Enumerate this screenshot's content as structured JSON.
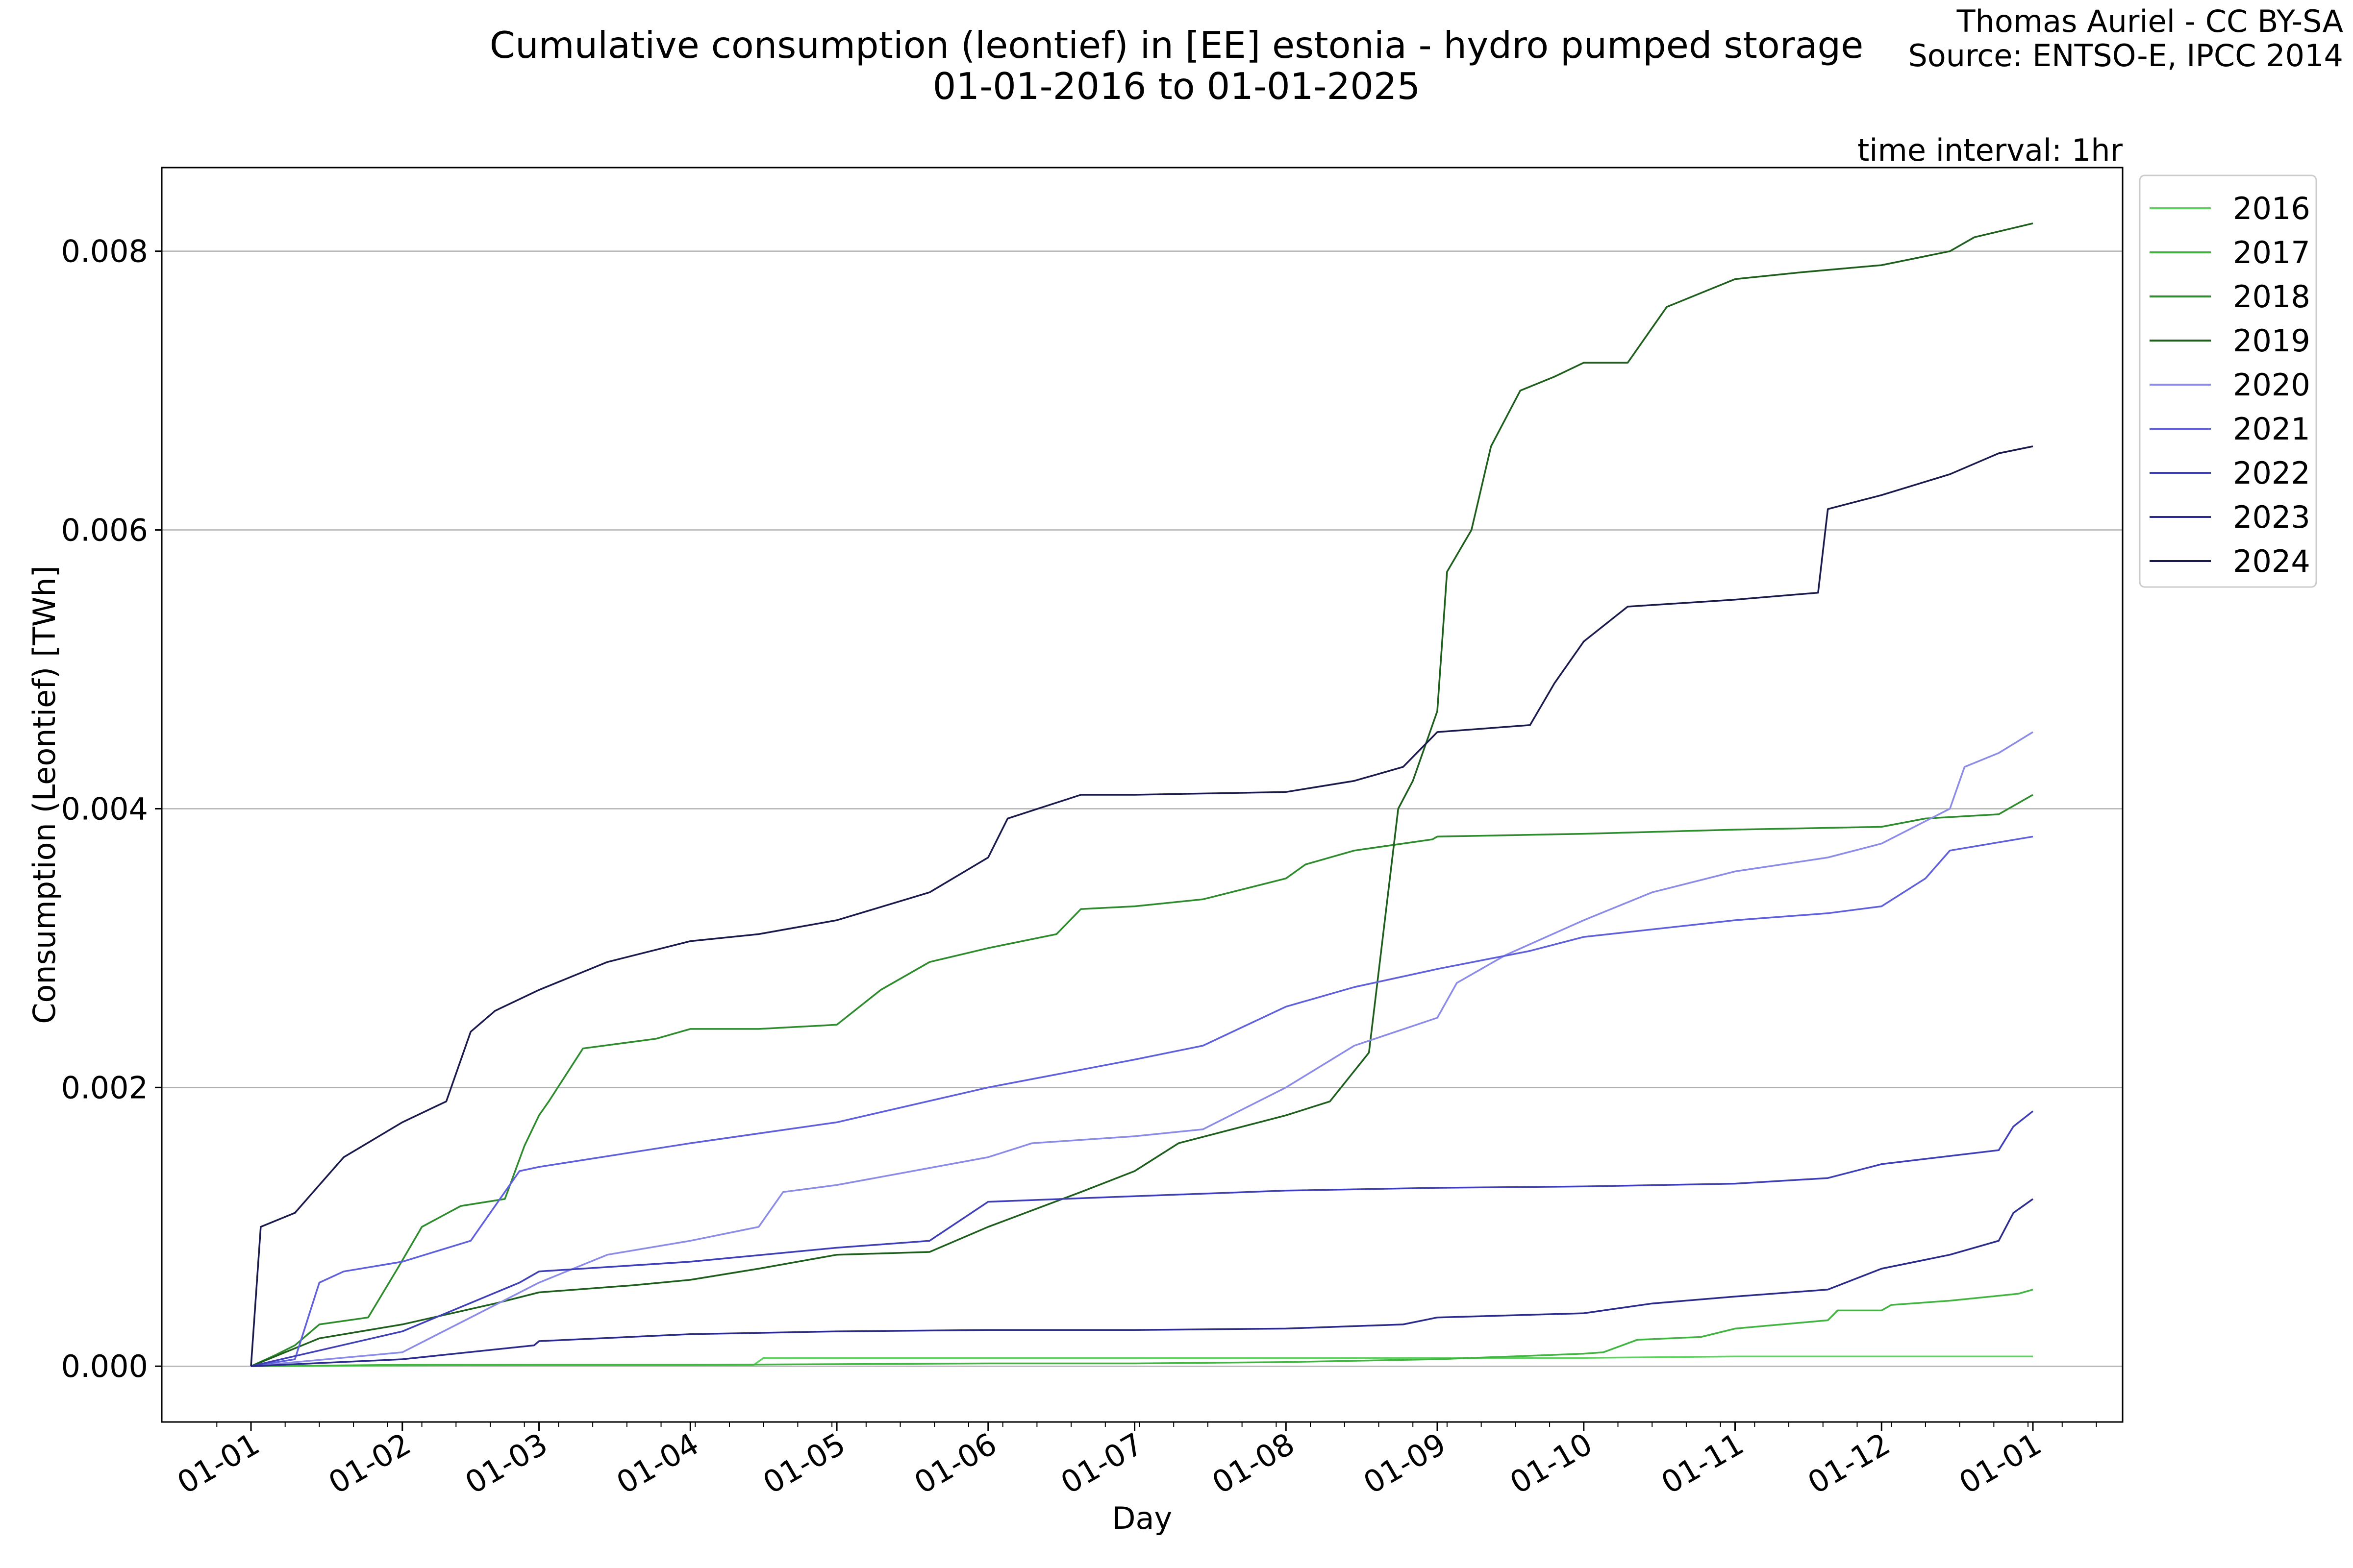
{
  "chart_data": {
    "type": "line",
    "title": "Cumulative consumption (leontief) in [EE] estonia - hydro pumped storage",
    "subtitle": "01-01-2016 to 01-01-2025",
    "credit": "Thomas Auriel - CC BY-SA",
    "source": "Source: ENTSO-E, IPCC 2014",
    "annotation": "time interval: 1hr",
    "xlabel": "Day",
    "ylabel": "Consumption (Leontief) [TWh]",
    "ylim": [
      -0.0004,
      0.0086
    ],
    "y_ticks": [
      0.0,
      0.002,
      0.004,
      0.006,
      0.008
    ],
    "y_tick_labels": [
      "0.000",
      "0.002",
      "0.004",
      "0.006",
      "0.008"
    ],
    "x_ticks": [
      "01-01",
      "01-02",
      "01-03",
      "01-04",
      "01-05",
      "01-06",
      "01-07",
      "01-08",
      "01-09",
      "01-10",
      "01-11",
      "01-12",
      "01-01"
    ],
    "grid": "horizontal",
    "legend_position": "outside-top-right",
    "series": [
      {
        "name": "2016",
        "color": "#5fd35f",
        "points": [
          [
            "01-01",
            0
          ],
          [
            "01-03",
            1e-05
          ],
          [
            "01-04",
            1e-05
          ],
          [
            "01-04-14",
            1e-05
          ],
          [
            "01-04-16",
            6e-05
          ],
          [
            "01-05",
            6e-05
          ],
          [
            "01-08",
            6e-05
          ],
          [
            "01-10",
            6e-05
          ],
          [
            "01-11",
            7e-05
          ],
          [
            "01-12",
            7e-05
          ],
          [
            "01-01",
            7e-05
          ]
        ]
      },
      {
        "name": "2017",
        "color": "#41b441",
        "points": [
          [
            "01-01",
            0
          ],
          [
            "01-02",
            1e-05
          ],
          [
            "01-04",
            1e-05
          ],
          [
            "01-06",
            2e-05
          ],
          [
            "01-07",
            2e-05
          ],
          [
            "01-08",
            3e-05
          ],
          [
            "01-09",
            5e-05
          ],
          [
            "01-10",
            9e-05
          ],
          [
            "01-10-05",
            0.0001
          ],
          [
            "01-10-12",
            0.00019
          ],
          [
            "01-10-25",
            0.00021
          ],
          [
            "01-11",
            0.00027
          ],
          [
            "01-11-20",
            0.00033
          ],
          [
            "01-11-22",
            0.0004
          ],
          [
            "01-12",
            0.0004
          ],
          [
            "01-12-03",
            0.00044
          ],
          [
            "01-12-15",
            0.00047
          ],
          [
            "01-12-29",
            0.00052
          ],
          [
            "01-01",
            0.00055
          ]
        ]
      },
      {
        "name": "2018",
        "color": "#2e8b2e",
        "points": [
          [
            "01-01",
            0
          ],
          [
            "01-01-06",
            8e-05
          ],
          [
            "01-01-10",
            0.00015
          ],
          [
            "01-01-15",
            0.0003
          ],
          [
            "01-01-25",
            0.00035
          ],
          [
            "01-01-31",
            0.0007
          ],
          [
            "01-02-05",
            0.001
          ],
          [
            "01-02-13",
            0.00115
          ],
          [
            "01-02-22",
            0.0012
          ],
          [
            "01-02-26",
            0.00158
          ],
          [
            "01-03",
            0.0018
          ],
          [
            "01-03-03",
            0.0019
          ],
          [
            "01-03-10",
            0.00228
          ],
          [
            "01-03-25",
            0.00235
          ],
          [
            "01-04",
            0.00242
          ],
          [
            "01-04-15",
            0.00242
          ],
          [
            "01-05",
            0.00245
          ],
          [
            "01-05-10",
            0.0027
          ],
          [
            "01-05-20",
            0.0029
          ],
          [
            "01-06",
            0.003
          ],
          [
            "01-06-15",
            0.0031
          ],
          [
            "01-06-20",
            0.00328
          ],
          [
            "01-07",
            0.0033
          ],
          [
            "01-07-15",
            0.00335
          ],
          [
            "01-08",
            0.0035
          ],
          [
            "01-08-05",
            0.0036
          ],
          [
            "01-08-15",
            0.0037
          ],
          [
            "01-08-31",
            0.00378
          ],
          [
            "01-09",
            0.0038
          ],
          [
            "01-10",
            0.00382
          ],
          [
            "01-11",
            0.00385
          ],
          [
            "01-12",
            0.00387
          ],
          [
            "01-12-10",
            0.00393
          ],
          [
            "01-12-25",
            0.00396
          ],
          [
            "01-01",
            0.0041
          ]
        ]
      },
      {
        "name": "2019",
        "color": "#1e5f1e",
        "points": [
          [
            "01-01",
            0
          ],
          [
            "01-01-15",
            0.0002
          ],
          [
            "01-02",
            0.0003
          ],
          [
            "01-02-20",
            0.00045
          ],
          [
            "01-03",
            0.00053
          ],
          [
            "01-03-20",
            0.00058
          ],
          [
            "01-04",
            0.00062
          ],
          [
            "01-04-15",
            0.0007
          ],
          [
            "01-05",
            0.0008
          ],
          [
            "01-05-20",
            0.00082
          ],
          [
            "01-06",
            0.001
          ],
          [
            "01-06-20",
            0.00125
          ],
          [
            "01-07",
            0.0014
          ],
          [
            "01-07-10",
            0.0016
          ],
          [
            "01-08",
            0.0018
          ],
          [
            "01-08-10",
            0.0019
          ],
          [
            "01-08-18",
            0.00225
          ],
          [
            "01-08-24",
            0.004
          ],
          [
            "01-08-27",
            0.0042
          ],
          [
            "01-09",
            0.0047
          ],
          [
            "01-09-03",
            0.0057
          ],
          [
            "01-09-08",
            0.006
          ],
          [
            "01-09-12",
            0.0066
          ],
          [
            "01-09-18",
            0.007
          ],
          [
            "01-09-25",
            0.0071
          ],
          [
            "01-10",
            0.0072
          ],
          [
            "01-10-10",
            0.0072
          ],
          [
            "01-10-18",
            0.0076
          ],
          [
            "01-10-25",
            0.0077
          ],
          [
            "01-11",
            0.0078
          ],
          [
            "01-11-15",
            0.00785
          ],
          [
            "01-12",
            0.0079
          ],
          [
            "01-12-15",
            0.008
          ],
          [
            "01-12-20",
            0.0081
          ],
          [
            "01-01",
            0.0082
          ]
        ]
      },
      {
        "name": "2020",
        "color": "#8c8ce8",
        "points": [
          [
            "01-01",
            0
          ],
          [
            "01-02",
            0.0001
          ],
          [
            "01-02-15",
            0.00035
          ],
          [
            "01-03",
            0.0006
          ],
          [
            "01-03-15",
            0.0008
          ],
          [
            "01-04",
            0.0009
          ],
          [
            "01-04-15",
            0.001
          ],
          [
            "01-04-20",
            0.00125
          ],
          [
            "01-05",
            0.0013
          ],
          [
            "01-06",
            0.0015
          ],
          [
            "01-06-10",
            0.0016
          ],
          [
            "01-07",
            0.00165
          ],
          [
            "01-07-15",
            0.0017
          ],
          [
            "01-08",
            0.002
          ],
          [
            "01-08-15",
            0.0023
          ],
          [
            "01-09",
            0.0025
          ],
          [
            "01-09-05",
            0.00275
          ],
          [
            "01-09-15",
            0.00295
          ],
          [
            "01-10",
            0.0032
          ],
          [
            "01-10-15",
            0.0034
          ],
          [
            "01-11",
            0.00355
          ],
          [
            "01-11-20",
            0.00365
          ],
          [
            "01-12",
            0.00375
          ],
          [
            "01-12-15",
            0.004
          ],
          [
            "01-12-18",
            0.0043
          ],
          [
            "01-12-25",
            0.0044
          ],
          [
            "01-01",
            0.00455
          ]
        ]
      },
      {
        "name": "2021",
        "color": "#6060dc",
        "points": [
          [
            "01-01",
            0
          ],
          [
            "01-01-10",
            5e-05
          ],
          [
            "01-01-15",
            0.0006
          ],
          [
            "01-01-20",
            0.00068
          ],
          [
            "01-02",
            0.00075
          ],
          [
            "01-02-15",
            0.0009
          ],
          [
            "01-02-25",
            0.0014
          ],
          [
            "01-03",
            0.00143
          ],
          [
            "01-04",
            0.0016
          ],
          [
            "01-05",
            0.00175
          ],
          [
            "01-06",
            0.002
          ],
          [
            "01-07",
            0.0022
          ],
          [
            "01-07-15",
            0.0023
          ],
          [
            "01-08",
            0.00258
          ],
          [
            "01-08-15",
            0.00272
          ],
          [
            "01-09",
            0.00285
          ],
          [
            "01-09-20",
            0.00298
          ],
          [
            "01-10",
            0.00308
          ],
          [
            "01-11",
            0.0032
          ],
          [
            "01-11-20",
            0.00325
          ],
          [
            "01-12",
            0.0033
          ],
          [
            "01-12-10",
            0.0035
          ],
          [
            "01-12-15",
            0.0037
          ],
          [
            "01-01",
            0.0038
          ]
        ]
      },
      {
        "name": "2022",
        "color": "#3f3fb8",
        "points": [
          [
            "01-01",
            0
          ],
          [
            "01-02",
            0.00025
          ],
          [
            "01-02-25",
            0.0006
          ],
          [
            "01-03",
            0.00068
          ],
          [
            "01-04",
            0.00075
          ],
          [
            "01-05",
            0.00085
          ],
          [
            "01-05-20",
            0.0009
          ],
          [
            "01-06",
            0.00118
          ],
          [
            "01-07",
            0.00122
          ],
          [
            "01-08",
            0.00126
          ],
          [
            "01-09",
            0.00128
          ],
          [
            "01-10",
            0.00129
          ],
          [
            "01-11",
            0.00131
          ],
          [
            "01-11-20",
            0.00135
          ],
          [
            "01-12",
            0.00145
          ],
          [
            "01-12-25",
            0.00155
          ],
          [
            "01-12-28",
            0.00172
          ],
          [
            "01-01",
            0.00183
          ]
        ]
      },
      {
        "name": "2023",
        "color": "#2b2b8c",
        "points": [
          [
            "01-01",
            0
          ],
          [
            "01-02",
            5e-05
          ],
          [
            "01-02-28",
            0.00015
          ],
          [
            "01-03",
            0.00018
          ],
          [
            "01-04",
            0.00023
          ],
          [
            "01-05",
            0.00025
          ],
          [
            "01-06",
            0.00026
          ],
          [
            "01-07",
            0.00026
          ],
          [
            "01-08",
            0.00027
          ],
          [
            "01-08-25",
            0.0003
          ],
          [
            "01-09",
            0.00035
          ],
          [
            "01-10",
            0.00038
          ],
          [
            "01-10-15",
            0.00045
          ],
          [
            "01-11",
            0.0005
          ],
          [
            "01-11-20",
            0.00055
          ],
          [
            "01-12",
            0.0007
          ],
          [
            "01-12-15",
            0.0008
          ],
          [
            "01-12-25",
            0.0009
          ],
          [
            "01-12-28",
            0.0011
          ],
          [
            "01-01",
            0.0012
          ]
        ]
      },
      {
        "name": "2024",
        "color": "#1a1a4d",
        "points": [
          [
            "01-01",
            0
          ],
          [
            "01-01-03",
            0.001
          ],
          [
            "01-01-10",
            0.0011
          ],
          [
            "01-01-15",
            0.0013
          ],
          [
            "01-01-20",
            0.0015
          ],
          [
            "01-02",
            0.00175
          ],
          [
            "01-02-10",
            0.0019
          ],
          [
            "01-02-15",
            0.0024
          ],
          [
            "01-02-20",
            0.00255
          ],
          [
            "01-03",
            0.0027
          ],
          [
            "01-03-15",
            0.0029
          ],
          [
            "01-04",
            0.00305
          ],
          [
            "01-04-15",
            0.0031
          ],
          [
            "01-05",
            0.0032
          ],
          [
            "01-05-20",
            0.0034
          ],
          [
            "01-06",
            0.00365
          ],
          [
            "01-06-05",
            0.00393
          ],
          [
            "01-06-20",
            0.0041
          ],
          [
            "01-07",
            0.0041
          ],
          [
            "01-08",
            0.00412
          ],
          [
            "01-08-15",
            0.0042
          ],
          [
            "01-08-25",
            0.0043
          ],
          [
            "01-09",
            0.00455
          ],
          [
            "01-09-20",
            0.0046
          ],
          [
            "01-09-25",
            0.0049
          ],
          [
            "01-10",
            0.0052
          ],
          [
            "01-10-10",
            0.00545
          ],
          [
            "01-11",
            0.0055
          ],
          [
            "01-11-18",
            0.00555
          ],
          [
            "01-11-20",
            0.00615
          ],
          [
            "01-12",
            0.00625
          ],
          [
            "01-12-15",
            0.0064
          ],
          [
            "01-12-25",
            0.00655
          ],
          [
            "01-01",
            0.0066
          ]
        ]
      }
    ]
  }
}
